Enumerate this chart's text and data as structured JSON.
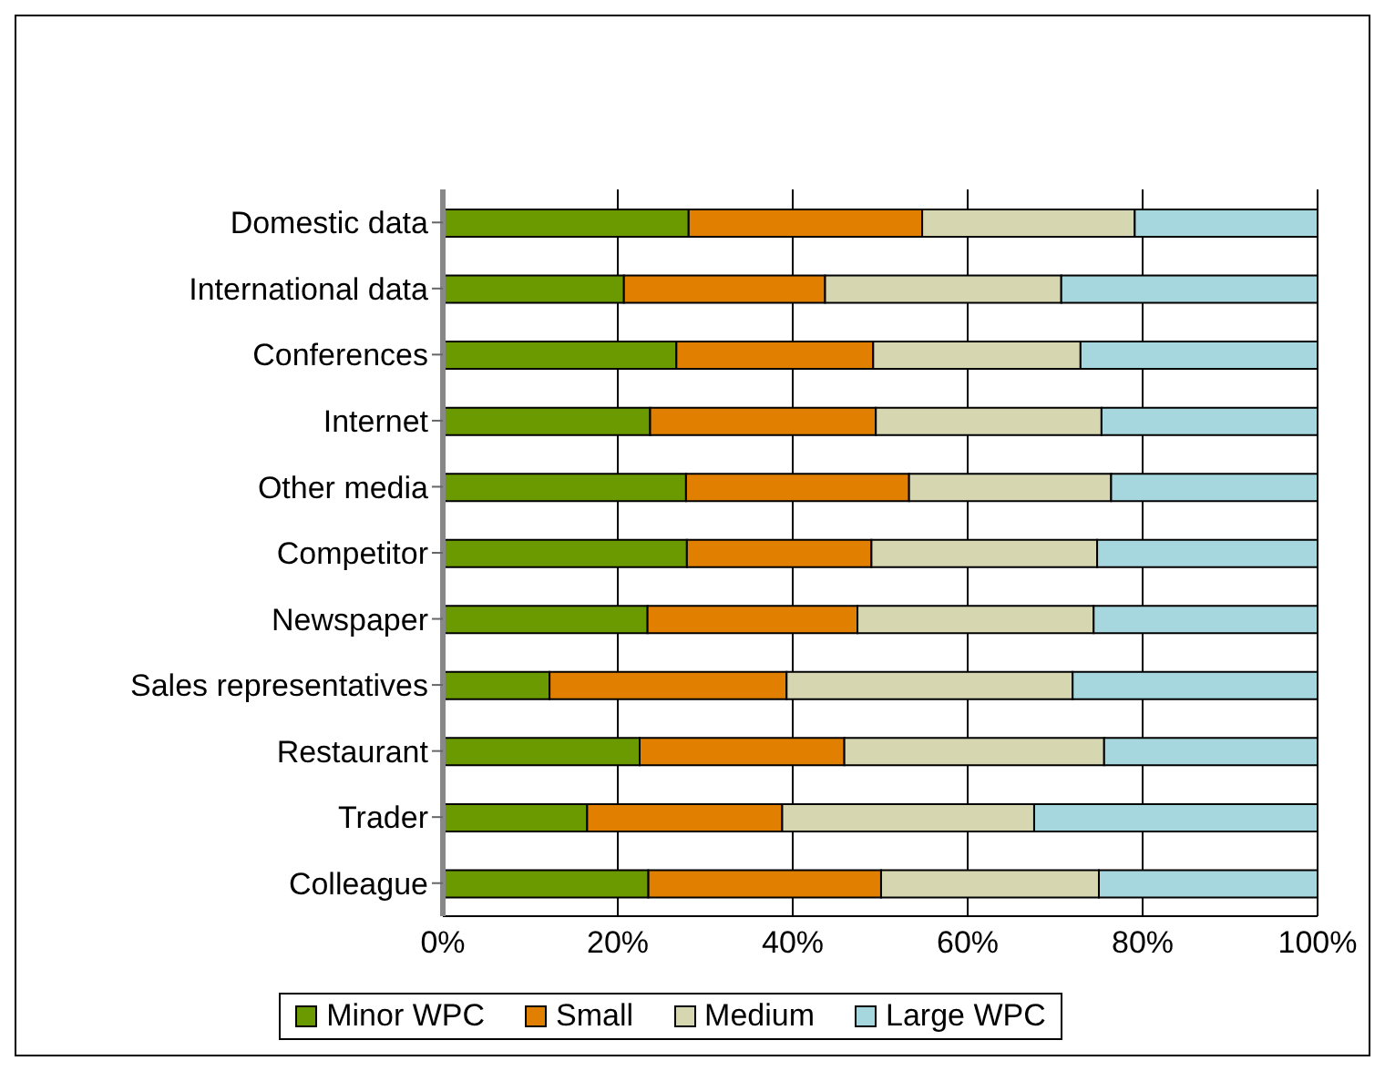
{
  "chart_data": {
    "type": "bar",
    "orientation": "horizontal",
    "stacked": true,
    "categories": [
      "Domestic data",
      "International data",
      "Conferences",
      "Internet",
      "Other media",
      "Competitor",
      "Newspaper",
      "Sales representatives",
      "Restaurant",
      "Trader",
      "Colleague"
    ],
    "series": [
      {
        "name": "Minor WPC",
        "color": "#6b9a00",
        "values": [
          28.1,
          20.7,
          26.7,
          23.7,
          27.8,
          27.9,
          23.4,
          12.2,
          22.5,
          16.5,
          23.5
        ]
      },
      {
        "name": "Small",
        "color": "#e07f00",
        "values": [
          26.7,
          23.0,
          22.5,
          25.8,
          25.5,
          21.1,
          24.0,
          27.1,
          23.4,
          22.3,
          26.6
        ]
      },
      {
        "name": "Medium",
        "color": "#d6d6b0",
        "values": [
          24.3,
          27.0,
          23.7,
          25.8,
          23.1,
          25.8,
          27.0,
          32.7,
          29.7,
          28.8,
          24.9
        ]
      },
      {
        "name": "Large WPC",
        "color": "#a6d6de",
        "values": [
          20.9,
          29.3,
          27.1,
          24.7,
          23.6,
          25.2,
          25.6,
          28.0,
          24.4,
          32.4,
          25.0
        ]
      }
    ],
    "xlim": [
      0,
      100
    ],
    "xticks": [
      {
        "value": 0,
        "label": "0%"
      },
      {
        "value": 20,
        "label": "20%"
      },
      {
        "value": 40,
        "label": "40%"
      },
      {
        "value": 60,
        "label": "60%"
      },
      {
        "value": 80,
        "label": "80%"
      },
      {
        "value": 100,
        "label": "100%"
      }
    ],
    "grid": "x",
    "legend": "bottom"
  }
}
